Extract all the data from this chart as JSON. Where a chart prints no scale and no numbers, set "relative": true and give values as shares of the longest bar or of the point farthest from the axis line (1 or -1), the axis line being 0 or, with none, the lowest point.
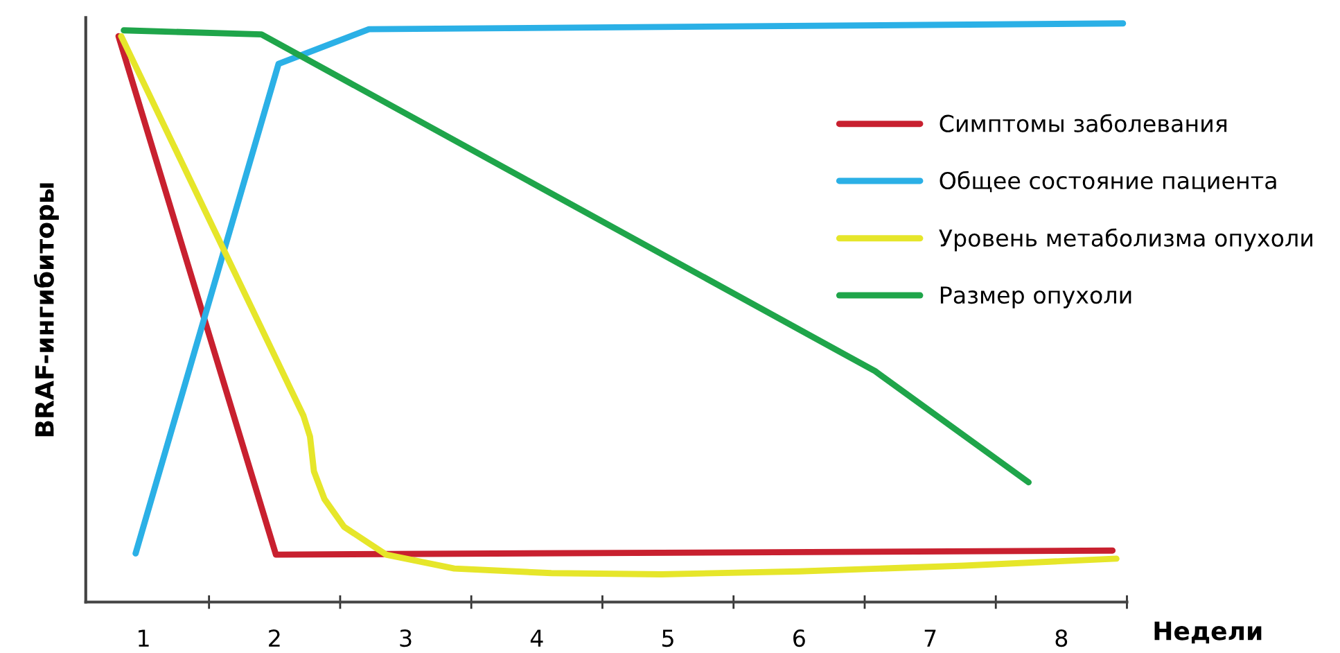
{
  "chart_data": {
    "type": "line",
    "relative": true,
    "xlabel": "Недели",
    "ylabel": "BRAF-ингибиторы",
    "xlim": [
      0.56,
      8.5
    ],
    "xticks": [
      1,
      {
        "value": 1.5,
        "label": null
      },
      2,
      {
        "value": 2.5,
        "label": null
      },
      3,
      {
        "value": 3.5,
        "label": null
      },
      4,
      {
        "value": 4.5,
        "label": null
      },
      5,
      {
        "value": 5.5,
        "label": null
      },
      6,
      {
        "value": 6.5,
        "label": null
      },
      7,
      {
        "value": 7.5,
        "label": null
      },
      8,
      {
        "value": 8.5,
        "label": null
      }
    ],
    "legend": "top right",
    "grid": false,
    "marker": "none",
    "line_style": "solid",
    "series": [
      {
        "name": "Симптомы заболевания",
        "color": "#c8202f",
        "x": [
          0.81,
          2.01,
          8.39
        ],
        "values": [
          0.978,
          0.082,
          0.089
        ]
      },
      {
        "name": "Общее состояние пациента",
        "color": "#2bb0e6",
        "x": [
          0.94,
          2.03,
          2.72,
          8.47
        ],
        "values": [
          0.084,
          0.93,
          0.99,
          1.0
        ]
      },
      {
        "name": "Уровень метаболизма опухоли",
        "color": "#e6e62a",
        "x": [
          0.83,
          2.22,
          2.27,
          2.3,
          2.38,
          2.53,
          2.85,
          3.37,
          4.11,
          4.95,
          6.0,
          7.26,
          8.42
        ],
        "values": [
          0.978,
          0.322,
          0.286,
          0.226,
          0.178,
          0.13,
          0.082,
          0.058,
          0.05,
          0.048,
          0.053,
          0.063,
          0.075
        ]
      },
      {
        "name": "Размер опухоли",
        "color": "#1fa54a",
        "x": [
          0.85,
          1.9,
          6.58,
          7.75
        ],
        "values": [
          0.988,
          0.981,
          0.399,
          0.207
        ]
      }
    ]
  }
}
